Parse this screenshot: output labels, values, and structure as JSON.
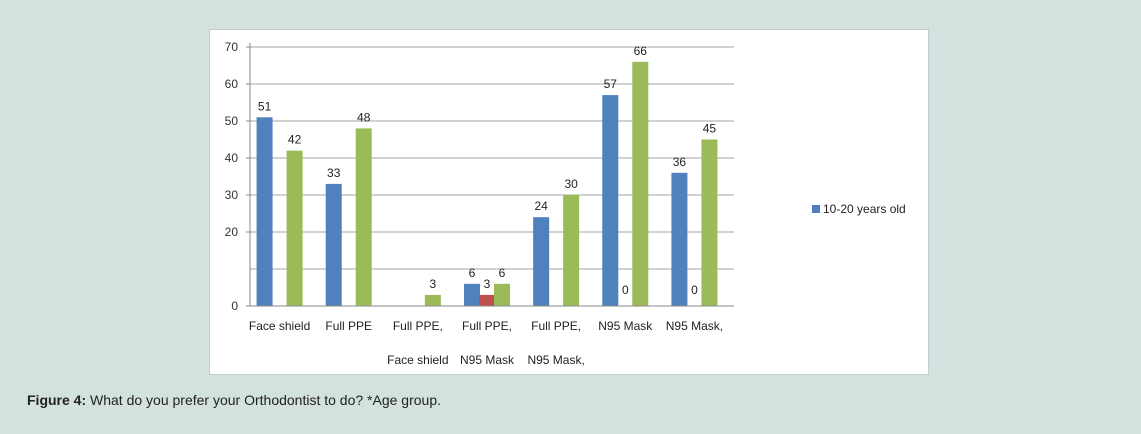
{
  "caption": {
    "label": "Figure 4:",
    "text": " What do you prefer your Orthodontist to do? *Age group."
  },
  "legend": {
    "label": "10-20 years old",
    "color": "#4f81bd"
  },
  "chart_data": {
    "type": "bar",
    "ylim": [
      0,
      70
    ],
    "yticks": [
      {
        "label": "70",
        "value": 70
      },
      {
        "label": "60",
        "value": 60
      },
      {
        "label": "50",
        "value": 50
      },
      {
        "label": "40",
        "value": 40
      },
      {
        "label": "30",
        "value": 30
      },
      {
        "label": "20",
        "value": 20
      },
      {
        "label": "0",
        "value": 0
      }
    ],
    "grid": true,
    "legend_position": "right",
    "category_labels_row1": [
      "Face shield",
      "Full PPE",
      "Full PPE,",
      "Full PPE,",
      "Full PPE,",
      "N95 Mask",
      "N95 Mask,"
    ],
    "category_labels_row2": [
      "Face shield",
      "N95 Mask",
      "N95 Mask,"
    ],
    "series": [
      {
        "name": "10-20 years old",
        "color": "#4f81bd",
        "values": [
          51,
          33,
          null,
          6,
          24,
          57,
          36
        ]
      },
      {
        "color": "#c0504d",
        "values": [
          null,
          null,
          null,
          3,
          null,
          0,
          0
        ]
      },
      {
        "color": "#9bbb59",
        "values": [
          42,
          48,
          3,
          6,
          30,
          66,
          45
        ]
      }
    ],
    "data_labels": [
      [
        "51",
        "33",
        "",
        "6",
        "24",
        "57",
        "36"
      ],
      [
        "",
        "",
        "",
        "3",
        "",
        "0",
        "0"
      ],
      [
        "42",
        "48",
        "3",
        "6",
        "30",
        "66",
        "45"
      ]
    ]
  }
}
